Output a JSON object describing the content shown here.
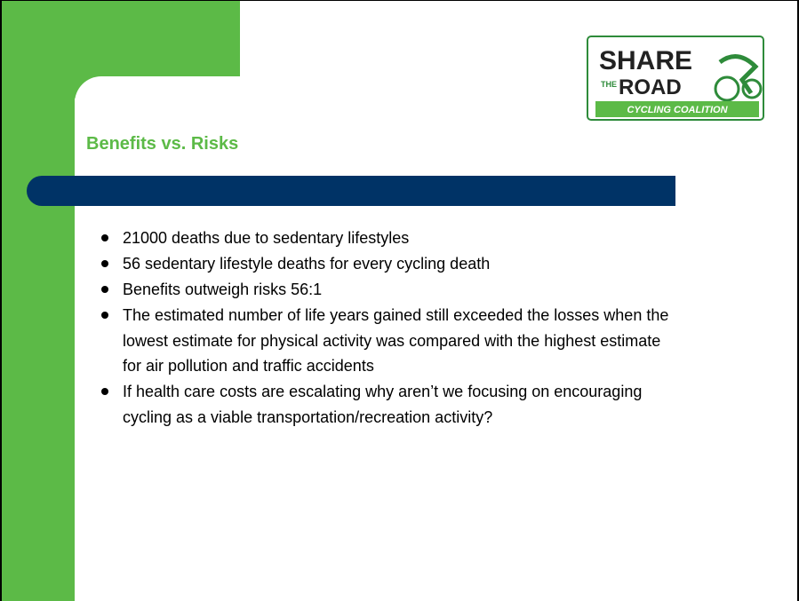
{
  "slide": {
    "logo": {
      "line1": "SHARE",
      "line2": "THE",
      "line3": "ROAD",
      "line4": "CYCLING COALITION"
    },
    "title": "Benefits vs. Risks",
    "bullets": [
      "21000 deaths due to sedentary lifestyles",
      "56 sedentary lifestyle deaths for every cycling death",
      "Benefits outweigh risks 56:1",
      "The estimated number of life years gained still exceeded the losses when the lowest estimate for physical activity was compared with the highest estimate for air pollution and traffic accidents",
      "If health care costs are escalating why aren’t we focusing on encouraging cycling as a viable transportation/recreation activity?"
    ]
  }
}
